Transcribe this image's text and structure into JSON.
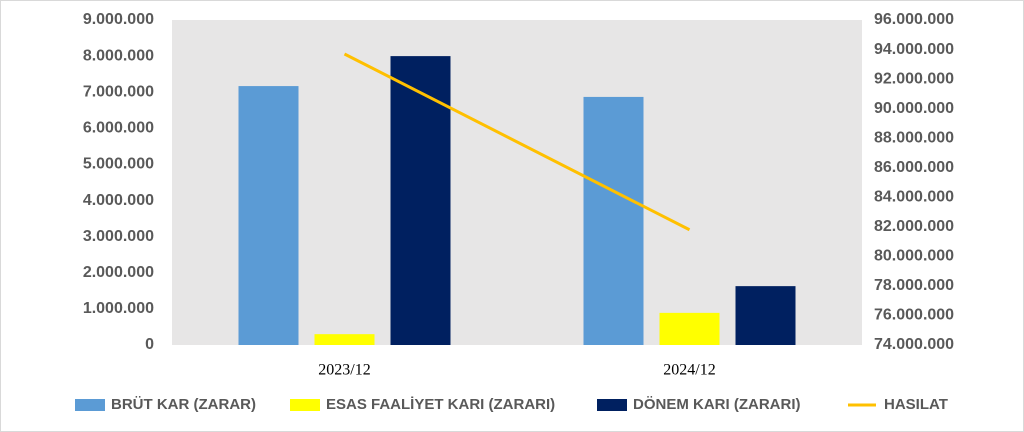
{
  "chart_data": {
    "type": "combo",
    "categories": [
      "2023/12",
      "2024/12"
    ],
    "series": [
      {
        "name": "BRÜT KAR (ZARAR)",
        "type": "bar",
        "color": "#5b9bd5",
        "values": [
          7170000,
          6870000
        ]
      },
      {
        "name": "ESAS FAALİYET KARI (ZARARI)",
        "type": "bar",
        "color": "#ffff00",
        "values": [
          300000,
          890000
        ]
      },
      {
        "name": "DÖNEM KARI (ZARARI)",
        "type": "bar",
        "color": "#002060",
        "values": [
          8000000,
          1630000
        ]
      },
      {
        "name": "HASILAT",
        "type": "line",
        "axis": "y2",
        "color": "#ffc000",
        "values": [
          93700000,
          81800000
        ]
      }
    ],
    "ylim": [
      0,
      9000000
    ],
    "yticks": [
      0,
      {
        "value": 1000000,
        "label": "1.000.000"
      },
      {
        "value": 2000000,
        "label": "2.000.000"
      },
      {
        "value": 3000000,
        "label": "3.000.000"
      },
      {
        "value": 4000000,
        "label": "4.000.000"
      },
      {
        "value": 5000000,
        "label": "5.000.000"
      },
      {
        "value": 6000000,
        "label": "6.000.000"
      },
      {
        "value": 7000000,
        "label": "7.000.000"
      },
      {
        "value": 8000000,
        "label": "8.000.000"
      },
      {
        "value": 9000000,
        "label": "9.000.000"
      }
    ],
    "y2lim": [
      74000000,
      96000000
    ],
    "y2ticks": [
      {
        "value": 74000000,
        "label": "74.000.000"
      },
      {
        "value": 76000000,
        "label": "76.000.000"
      },
      {
        "value": 78000000,
        "label": "78.000.000"
      },
      {
        "value": 80000000,
        "label": "80.000.000"
      },
      {
        "value": 82000000,
        "label": "82.000.000"
      },
      {
        "value": 84000000,
        "label": "84.000.000"
      },
      {
        "value": 86000000,
        "label": "86.000.000"
      },
      {
        "value": 88000000,
        "label": "88.000.000"
      },
      {
        "value": 90000000,
        "label": "90.000.000"
      },
      {
        "value": 92000000,
        "label": "92.000.000"
      },
      {
        "value": 94000000,
        "label": "94.000.000"
      },
      {
        "value": 96000000,
        "label": "96.000.000"
      }
    ],
    "legend": "bottom"
  }
}
